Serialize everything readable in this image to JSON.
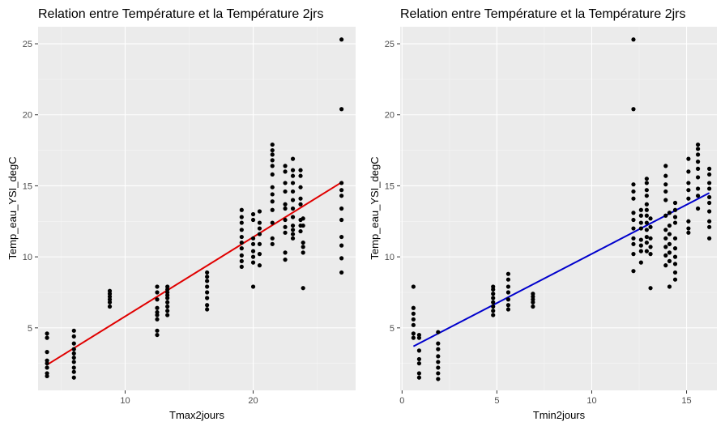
{
  "chart_data": [
    {
      "type": "scatter",
      "title": "Relation entre Température et la Température 2jrs",
      "xlabel": "Tmax2jours",
      "ylabel": "Temp_eau_YSI_degC",
      "xlim": [
        3.2,
        28.0
      ],
      "ylim": [
        0.6,
        26.2
      ],
      "xticks": [
        10,
        20
      ],
      "yticks": [
        5,
        10,
        15,
        20,
        25
      ],
      "grid": true,
      "trend_color": "#e00000",
      "trend": {
        "x": [
          3.9,
          27.0
        ],
        "y": [
          2.4,
          15.3
        ]
      },
      "points": [
        {
          "x": 3.9,
          "y": [
            1.6,
            1.8,
            2.2,
            2.5,
            2.7,
            3.3,
            4.3,
            4.6
          ]
        },
        {
          "x": 6.0,
          "y": [
            1.5,
            1.9,
            2.2,
            2.6,
            2.9,
            3.2,
            3.5,
            3.9,
            4.4,
            4.8
          ]
        },
        {
          "x": 8.8,
          "y": [
            6.5,
            6.8,
            7.0,
            7.2,
            7.4,
            7.6
          ]
        },
        {
          "x": 12.5,
          "y": [
            4.5,
            4.8,
            5.6,
            5.9,
            6.1,
            6.4,
            7.0,
            7.5,
            7.9
          ]
        },
        {
          "x": 13.3,
          "y": [
            5.9,
            6.2,
            6.5,
            6.8,
            7.1,
            7.3,
            7.5,
            7.7,
            7.9
          ]
        },
        {
          "x": 16.4,
          "y": [
            6.3,
            6.6,
            7.1,
            7.5,
            7.9,
            8.3,
            8.6,
            8.9
          ]
        },
        {
          "x": 19.1,
          "y": [
            9.3,
            9.7,
            10.1,
            10.6,
            11.0,
            11.4,
            11.9,
            12.4,
            12.8,
            13.3
          ]
        },
        {
          "x": 20.0,
          "y": [
            7.9,
            9.6,
            10.0,
            10.4,
            10.9,
            11.3,
            12.6,
            13.0
          ]
        },
        {
          "x": 20.5,
          "y": [
            9.4,
            10.2,
            10.9,
            11.6,
            12.0,
            12.4,
            13.2
          ]
        },
        {
          "x": 21.5,
          "y": [
            10.9,
            11.3,
            12.4,
            13.3,
            13.9,
            14.4,
            14.9,
            15.8,
            16.4,
            16.8,
            17.2,
            17.5,
            17.9
          ]
        },
        {
          "x": 22.5,
          "y": [
            9.8,
            10.3,
            11.7,
            12.1,
            12.6,
            13.4,
            13.7,
            14.6,
            15.2,
            16.0,
            16.4
          ]
        },
        {
          "x": 23.1,
          "y": [
            11.3,
            11.6,
            11.9,
            12.2,
            12.8,
            13.4,
            14.0,
            14.6,
            15.2,
            15.7,
            16.1,
            16.9
          ]
        },
        {
          "x": 23.7,
          "y": [
            11.8,
            12.2,
            12.6,
            13.7,
            14.1,
            14.9,
            15.7,
            16.1
          ]
        },
        {
          "x": 23.9,
          "y": [
            7.8,
            10.3,
            10.7,
            11.0,
            12.2,
            12.7
          ]
        },
        {
          "x": 26.9,
          "y": [
            8.9,
            9.9,
            10.8,
            11.4,
            12.6,
            13.4,
            14.3,
            14.7,
            15.2,
            20.4,
            25.3
          ]
        }
      ]
    },
    {
      "type": "scatter",
      "title": "Relation entre Température et la Température 2jrs",
      "xlabel": "Tmin2jours",
      "ylabel": "Temp_eau_YSI_degC",
      "xlim": [
        -0.1,
        16.6
      ],
      "ylim": [
        0.6,
        26.2
      ],
      "xticks": [
        0,
        5,
        10,
        15
      ],
      "yticks": [
        5,
        10,
        15,
        20,
        25
      ],
      "grid": true,
      "trend_color": "#0000cc",
      "trend": {
        "x": [
          0.6,
          16.2
        ],
        "y": [
          3.7,
          14.5
        ]
      },
      "points": [
        {
          "x": 0.6,
          "y": [
            4.3,
            4.6,
            5.2,
            5.6,
            6.0,
            6.4,
            7.9
          ]
        },
        {
          "x": 0.9,
          "y": [
            1.5,
            1.8,
            2.5,
            2.8,
            3.4,
            4.3,
            4.5
          ]
        },
        {
          "x": 1.9,
          "y": [
            1.4,
            1.8,
            2.2,
            2.6,
            3.0,
            3.5,
            3.9,
            4.7
          ]
        },
        {
          "x": 4.8,
          "y": [
            5.9,
            6.2,
            6.5,
            6.8,
            7.1,
            7.4,
            7.7,
            7.9
          ]
        },
        {
          "x": 5.6,
          "y": [
            6.3,
            6.6,
            7.0,
            7.5,
            7.9,
            8.4,
            8.8
          ]
        },
        {
          "x": 6.9,
          "y": [
            6.5,
            6.8,
            7.0,
            7.2,
            7.4
          ]
        },
        {
          "x": 12.2,
          "y": [
            9.0,
            10.2,
            10.9,
            11.3,
            12.0,
            12.6,
            13.1,
            14.1,
            14.6,
            15.1,
            20.4,
            25.3
          ]
        },
        {
          "x": 12.6,
          "y": [
            9.6,
            10.4,
            10.8,
            11.2,
            12.0,
            12.4,
            12.9,
            13.3
          ]
        },
        {
          "x": 12.9,
          "y": [
            10.4,
            11.0,
            11.4,
            11.9,
            12.4,
            12.9,
            13.3,
            13.7,
            14.3,
            14.7,
            15.2,
            15.5
          ]
        },
        {
          "x": 13.1,
          "y": [
            7.8,
            10.2,
            10.7,
            11.3,
            12.1,
            12.7
          ]
        },
        {
          "x": 13.9,
          "y": [
            9.4,
            10.1,
            10.7,
            11.3,
            11.9,
            12.9,
            14.0,
            14.6,
            15.1,
            15.7,
            16.4
          ]
        },
        {
          "x": 14.1,
          "y": [
            7.9,
            9.7,
            10.3,
            10.9,
            11.6,
            12.2,
            13.1
          ]
        },
        {
          "x": 14.4,
          "y": [
            8.4,
            8.9,
            9.5,
            10.0,
            10.6,
            11.3,
            12.4,
            12.8,
            13.3,
            13.8
          ]
        },
        {
          "x": 15.1,
          "y": [
            11.7,
            12.0,
            12.5,
            14.1,
            14.7,
            15.2,
            16.0,
            16.9
          ]
        },
        {
          "x": 15.6,
          "y": [
            13.4,
            14.3,
            14.8,
            15.6,
            16.2,
            16.7,
            17.2,
            17.6,
            17.9
          ]
        },
        {
          "x": 16.2,
          "y": [
            11.3,
            12.1,
            12.5,
            13.2,
            13.8,
            14.2,
            14.8,
            15.2,
            15.8,
            16.2
          ]
        }
      ]
    }
  ]
}
